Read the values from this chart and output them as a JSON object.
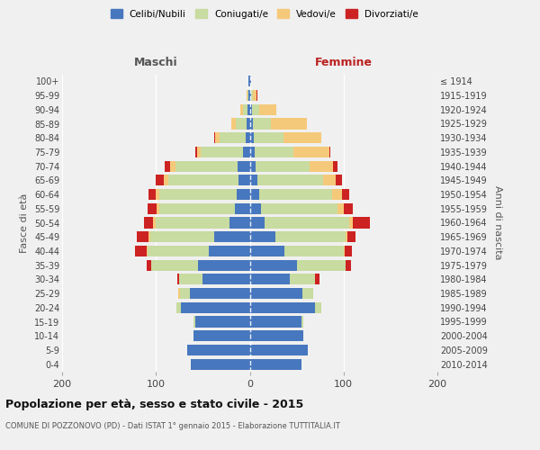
{
  "age_groups": [
    "0-4",
    "5-9",
    "10-14",
    "15-19",
    "20-24",
    "25-29",
    "30-34",
    "35-39",
    "40-44",
    "45-49",
    "50-54",
    "55-59",
    "60-64",
    "65-69",
    "70-74",
    "75-79",
    "80-84",
    "85-89",
    "90-94",
    "95-99",
    "100+"
  ],
  "birth_years": [
    "2010-2014",
    "2005-2009",
    "2000-2004",
    "1995-1999",
    "1990-1994",
    "1985-1989",
    "1980-1984",
    "1975-1979",
    "1970-1974",
    "1965-1969",
    "1960-1964",
    "1955-1959",
    "1950-1954",
    "1945-1949",
    "1940-1944",
    "1935-1939",
    "1930-1934",
    "1925-1929",
    "1920-1924",
    "1915-1919",
    "≤ 1914"
  ],
  "males_celibi": [
    63,
    67,
    60,
    58,
    73,
    64,
    50,
    55,
    44,
    38,
    22,
    16,
    14,
    12,
    13,
    7,
    4,
    3,
    2,
    1,
    1
  ],
  "males_coniugati": [
    0,
    0,
    0,
    2,
    5,
    10,
    25,
    50,
    65,
    68,
    78,
    80,
    82,
    75,
    66,
    45,
    28,
    12,
    5,
    1,
    0
  ],
  "males_vedovi": [
    0,
    0,
    0,
    0,
    0,
    2,
    0,
    0,
    1,
    2,
    3,
    3,
    4,
    5,
    6,
    4,
    5,
    5,
    3,
    1,
    0
  ],
  "males_divorziati": [
    0,
    0,
    0,
    0,
    0,
    0,
    2,
    5,
    12,
    12,
    10,
    10,
    8,
    8,
    6,
    2,
    1,
    0,
    0,
    0,
    0
  ],
  "females_nubili": [
    55,
    62,
    57,
    55,
    70,
    56,
    43,
    50,
    37,
    27,
    16,
    12,
    10,
    8,
    6,
    5,
    4,
    3,
    2,
    1,
    1
  ],
  "females_coniugate": [
    0,
    0,
    0,
    2,
    6,
    12,
    27,
    52,
    63,
    75,
    90,
    82,
    78,
    70,
    58,
    42,
    32,
    20,
    8,
    2,
    0
  ],
  "females_vedove": [
    0,
    0,
    0,
    0,
    0,
    0,
    0,
    0,
    1,
    2,
    4,
    6,
    10,
    14,
    25,
    38,
    40,
    38,
    18,
    4,
    0
  ],
  "females_divorziate": [
    0,
    0,
    0,
    0,
    0,
    0,
    4,
    6,
    8,
    9,
    18,
    10,
    8,
    6,
    5,
    1,
    0,
    0,
    0,
    1,
    0
  ],
  "color_celibi": "#4777be",
  "color_coniugati": "#c8dba0",
  "color_vedovi": "#f5c97a",
  "color_divorziati": "#cc2222",
  "title": "Popolazione per età, sesso e stato civile - 2015",
  "subtitle": "COMUNE DI POZZONOVO (PD) - Dati ISTAT 1° gennaio 2015 - Elaborazione TUTTITALIA.IT",
  "ylabel_left": "Fasce di età",
  "ylabel_right": "Anni di nascita",
  "label_maschi": "Maschi",
  "label_femmine": "Femmine",
  "legend_labels": [
    "Celibi/Nubili",
    "Coniugati/e",
    "Vedovi/e",
    "Divorziati/e"
  ],
  "xlim": 200
}
